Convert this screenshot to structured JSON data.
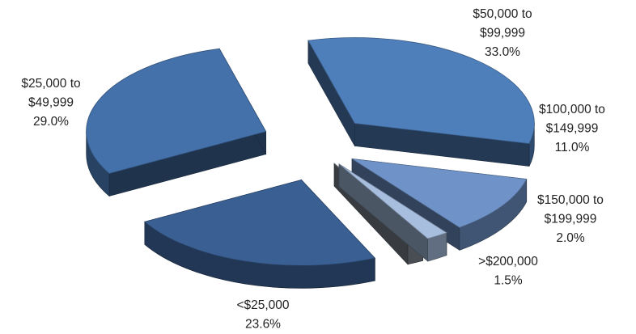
{
  "chart_data": {
    "type": "pie",
    "style": "3d exploded",
    "legend": "none",
    "slices": [
      {
        "label": "$50,000 to $99,999",
        "label_lines": [
          "$50,000 to",
          "$99,999"
        ],
        "value": 33.0,
        "value_label": "33.0%",
        "color": "#4f7fbb"
      },
      {
        "label": "$100,000 to $149,999",
        "label_lines": [
          "$100,000 to",
          "$149,999"
        ],
        "value": 11.0,
        "value_label": "11.0%",
        "color": "#6f93c8"
      },
      {
        "label": "$150,000 to $199,999",
        "label_lines": [
          "$150,000 to",
          "$199,999"
        ],
        "value": 2.0,
        "value_label": "2.0%",
        "color": "#a7bedf"
      },
      {
        "label": ">$200,000",
        "label_lines": [
          ">$200,000"
        ],
        "value": 1.5,
        "value_label": "1.5%",
        "color": "#7d8590"
      },
      {
        "label": "<$25,000",
        "label_lines": [
          "<$25,000"
        ],
        "value": 23.6,
        "value_label": "23.6%",
        "color": "#3a5f93"
      },
      {
        "label": "$25,000 to $49,999",
        "label_lines": [
          "$25,000 to",
          "$49,999"
        ],
        "value": 29.0,
        "value_label": "29.0%",
        "color": "#4471aa"
      }
    ]
  }
}
